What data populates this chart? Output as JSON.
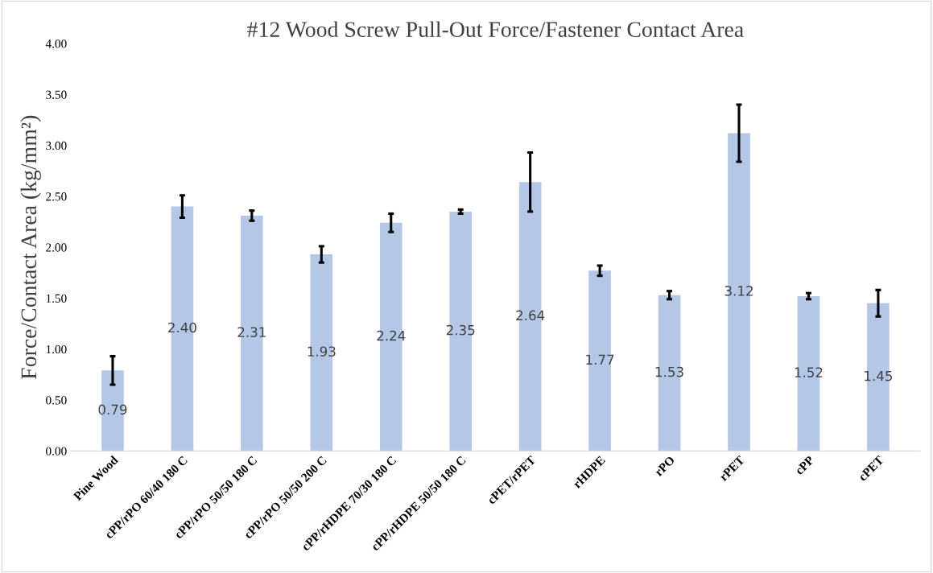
{
  "chart_data": {
    "type": "bar",
    "title": "#12 Wood Screw Pull-Out Force/Fastener Contact Area",
    "ylabel": "Force/Contact Area (kg/mm²)",
    "categories": [
      "Pine Wood",
      "cPP/rPO 60/40 180 C",
      "cPP/rPO 50/50 180 C",
      "cPP/rPO 50/50 200 C",
      "cPP/rHDPE 70/30 180 C",
      "cPP/rHDPE 50/50 180 C",
      "cPET/rPET",
      "rHDPE",
      "rPO",
      "rPET",
      "cPP",
      "cPET"
    ],
    "values": [
      0.79,
      2.4,
      2.31,
      1.93,
      2.24,
      2.35,
      2.64,
      1.77,
      1.53,
      3.12,
      1.52,
      1.45
    ],
    "value_labels": [
      "0.79",
      "2.40",
      "2.31",
      "1.93",
      "2.24",
      "2.35",
      "2.64",
      "1.77",
      "1.53",
      "3.12",
      "1.52",
      "1.45"
    ],
    "errors": [
      0.14,
      0.11,
      0.05,
      0.08,
      0.09,
      0.02,
      0.29,
      0.05,
      0.04,
      0.28,
      0.03,
      0.13
    ],
    "color": "#b4c7e7",
    "ylim": [
      0,
      4
    ],
    "yticks": [
      {
        "value": 0,
        "label": "0.00"
      },
      {
        "value": 0.5,
        "label": "0.50"
      },
      {
        "value": 1,
        "label": "1.00"
      },
      {
        "value": 1.5,
        "label": "1.50"
      },
      {
        "value": 2,
        "label": "2.00"
      },
      {
        "value": 2.5,
        "label": "2.50"
      },
      {
        "value": 3,
        "label": "3.00"
      },
      {
        "value": 3.5,
        "label": "3.50"
      },
      {
        "value": 4,
        "label": "4.00"
      }
    ],
    "grid": false,
    "legend": false
  }
}
